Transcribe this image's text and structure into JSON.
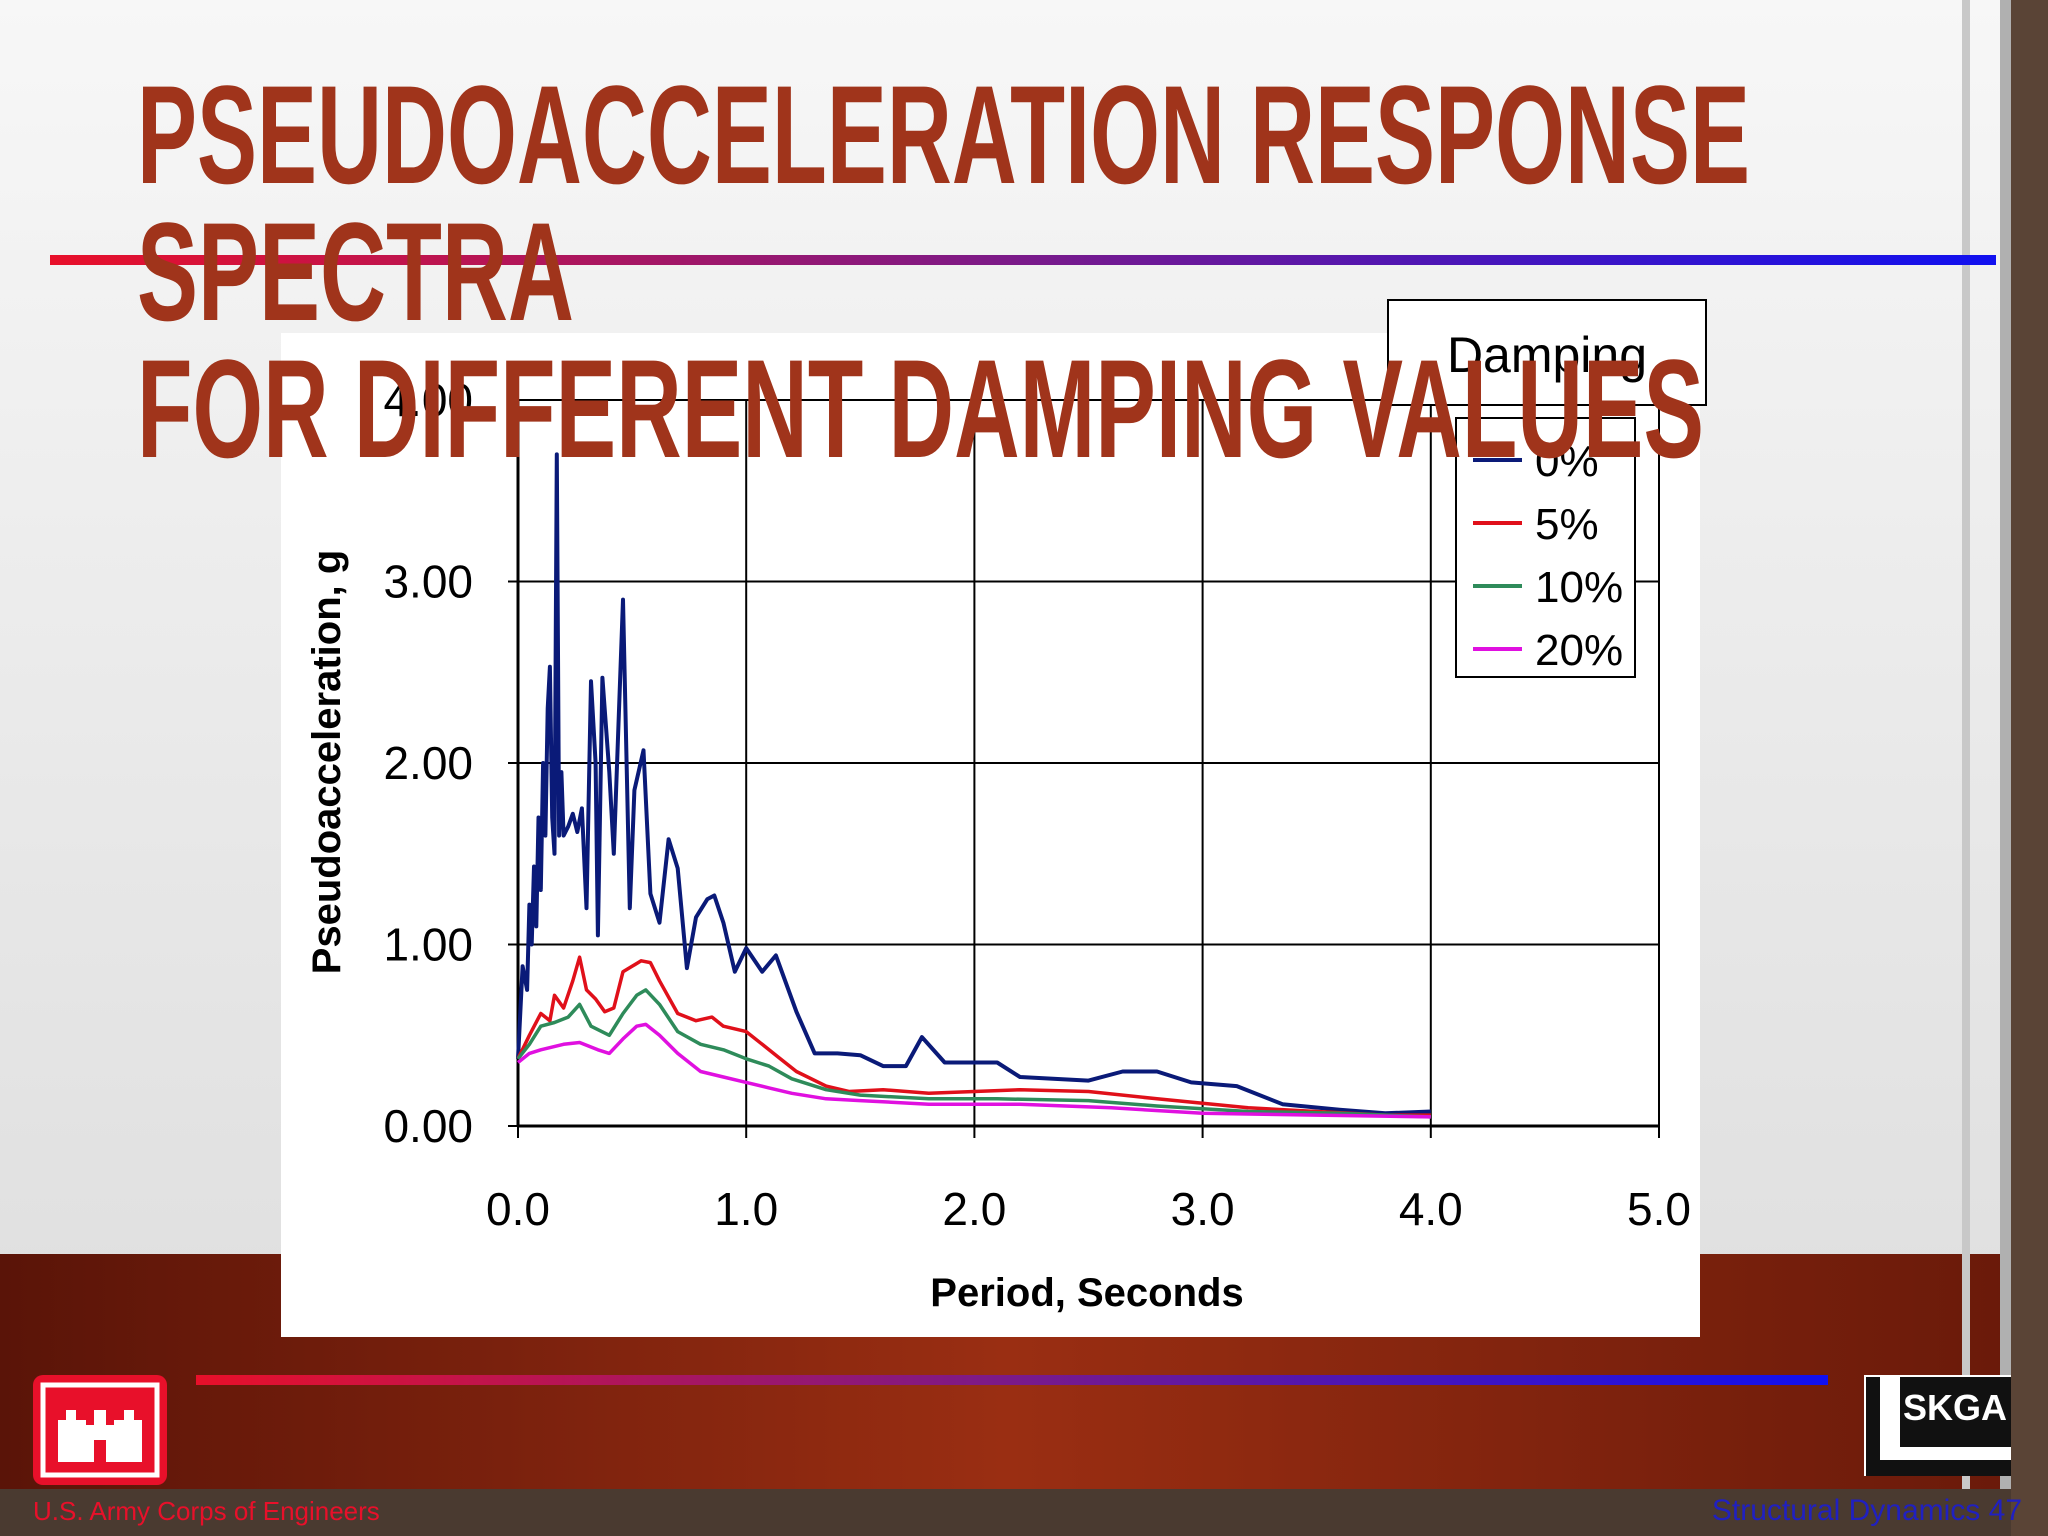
{
  "slide": {
    "title_lines": [
      "PSEUDOACCELERATION RESPONSE",
      "SPECTRA",
      "FOR DIFFERENT DAMPING VALUES"
    ],
    "footer_left": "U.S. Army Corps of Engineers",
    "footer_right": "Structural Dynamics 47",
    "logo_text": "SKGA"
  },
  "chart_data": {
    "type": "line",
    "xlabel": "Period, Seconds",
    "ylabel": "Pseudoacceleration, g",
    "legend_title": "Damping",
    "legend": "upper right",
    "grid": true,
    "xlim": [
      0,
      5
    ],
    "ylim": [
      0,
      4
    ],
    "xticks": [
      {
        "value": 0,
        "label": "0.0"
      },
      {
        "value": 1,
        "label": "1.0"
      },
      {
        "value": 2,
        "label": "2.0"
      },
      {
        "value": 3,
        "label": "3.0"
      },
      {
        "value": 4,
        "label": "4.0"
      },
      {
        "value": 5,
        "label": "5.0"
      }
    ],
    "yticks": [
      {
        "value": 0,
        "label": "0.00"
      },
      {
        "value": 1,
        "label": "1.00"
      },
      {
        "value": 2,
        "label": "2.00"
      },
      {
        "value": 3,
        "label": "3.00"
      },
      {
        "value": 4,
        "label": "4.00"
      }
    ],
    "series": [
      {
        "name": "0%",
        "color": "#0a1a78",
        "x": [
          0.0,
          0.02,
          0.04,
          0.05,
          0.06,
          0.07,
          0.08,
          0.09,
          0.1,
          0.11,
          0.12,
          0.13,
          0.14,
          0.15,
          0.16,
          0.17,
          0.18,
          0.19,
          0.2,
          0.22,
          0.24,
          0.26,
          0.28,
          0.3,
          0.32,
          0.34,
          0.35,
          0.37,
          0.4,
          0.42,
          0.46,
          0.49,
          0.51,
          0.55,
          0.58,
          0.62,
          0.66,
          0.7,
          0.74,
          0.78,
          0.83,
          0.86,
          0.9,
          0.95,
          1.0,
          1.07,
          1.13,
          1.22,
          1.3,
          1.4,
          1.5,
          1.6,
          1.7,
          1.77,
          1.87,
          2.0,
          2.1,
          2.2,
          2.5,
          2.65,
          2.8,
          2.95,
          3.15,
          3.35,
          3.6,
          3.8,
          4.0
        ],
        "values": [
          0.37,
          0.88,
          0.75,
          1.22,
          1.0,
          1.43,
          1.1,
          1.7,
          1.3,
          2.0,
          1.6,
          2.3,
          2.53,
          1.7,
          1.5,
          3.7,
          1.6,
          1.95,
          1.6,
          1.65,
          1.72,
          1.62,
          1.75,
          1.2,
          2.45,
          2.0,
          1.05,
          2.47,
          1.95,
          1.5,
          2.9,
          1.2,
          1.85,
          2.07,
          1.28,
          1.12,
          1.58,
          1.42,
          0.87,
          1.15,
          1.25,
          1.27,
          1.12,
          0.85,
          0.98,
          0.85,
          0.94,
          0.63,
          0.4,
          0.4,
          0.39,
          0.33,
          0.33,
          0.49,
          0.35,
          0.35,
          0.35,
          0.27,
          0.25,
          0.3,
          0.3,
          0.24,
          0.22,
          0.12,
          0.09,
          0.07,
          0.08
        ]
      },
      {
        "name": "5%",
        "color": "#e0101a",
        "x": [
          0.0,
          0.05,
          0.1,
          0.14,
          0.16,
          0.2,
          0.24,
          0.27,
          0.3,
          0.34,
          0.38,
          0.42,
          0.46,
          0.5,
          0.54,
          0.58,
          0.62,
          0.7,
          0.78,
          0.85,
          0.9,
          1.0,
          1.07,
          1.14,
          1.22,
          1.35,
          1.45,
          1.6,
          1.8,
          2.0,
          2.2,
          2.5,
          2.8,
          3.2,
          3.5,
          3.8,
          4.0
        ],
        "values": [
          0.37,
          0.5,
          0.62,
          0.58,
          0.72,
          0.65,
          0.8,
          0.93,
          0.75,
          0.7,
          0.63,
          0.65,
          0.85,
          0.88,
          0.91,
          0.9,
          0.8,
          0.62,
          0.58,
          0.6,
          0.55,
          0.52,
          0.45,
          0.38,
          0.3,
          0.22,
          0.19,
          0.2,
          0.18,
          0.19,
          0.2,
          0.19,
          0.15,
          0.1,
          0.08,
          0.06,
          0.06
        ]
      },
      {
        "name": "10%",
        "color": "#2e8b5a",
        "x": [
          0.0,
          0.05,
          0.1,
          0.16,
          0.22,
          0.27,
          0.32,
          0.4,
          0.46,
          0.52,
          0.56,
          0.62,
          0.7,
          0.8,
          0.9,
          1.0,
          1.1,
          1.2,
          1.35,
          1.5,
          1.8,
          2.1,
          2.5,
          2.8,
          3.2,
          3.6,
          4.0
        ],
        "values": [
          0.37,
          0.45,
          0.55,
          0.57,
          0.6,
          0.67,
          0.55,
          0.5,
          0.62,
          0.72,
          0.75,
          0.67,
          0.52,
          0.45,
          0.42,
          0.37,
          0.33,
          0.26,
          0.2,
          0.17,
          0.15,
          0.15,
          0.14,
          0.11,
          0.08,
          0.07,
          0.05
        ]
      },
      {
        "name": "20%",
        "color": "#e010e0",
        "x": [
          0.0,
          0.05,
          0.1,
          0.2,
          0.27,
          0.35,
          0.4,
          0.46,
          0.52,
          0.56,
          0.62,
          0.7,
          0.8,
          0.9,
          1.0,
          1.1,
          1.2,
          1.35,
          1.5,
          1.8,
          2.2,
          2.6,
          3.0,
          3.5,
          4.0
        ],
        "values": [
          0.35,
          0.4,
          0.42,
          0.45,
          0.46,
          0.42,
          0.4,
          0.48,
          0.55,
          0.56,
          0.5,
          0.4,
          0.3,
          0.27,
          0.24,
          0.21,
          0.18,
          0.15,
          0.14,
          0.12,
          0.12,
          0.1,
          0.07,
          0.06,
          0.05
        ]
      }
    ]
  }
}
